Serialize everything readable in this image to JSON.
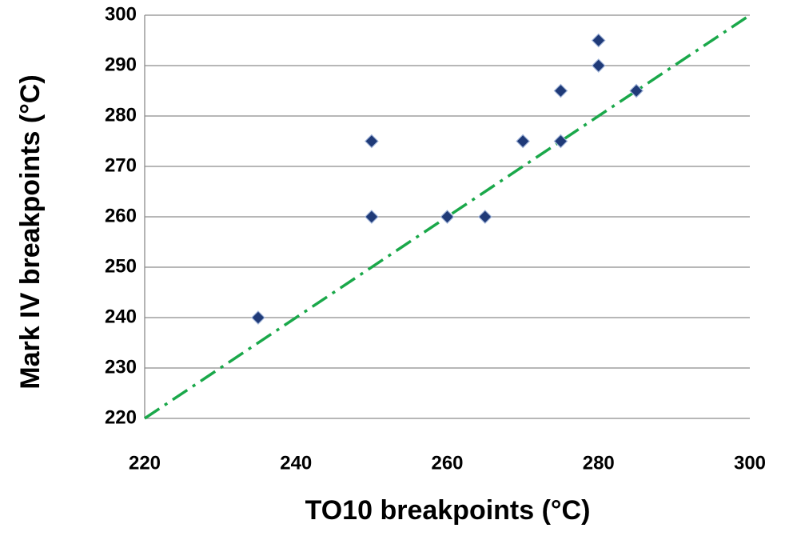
{
  "chart_data": {
    "type": "scatter",
    "xlabel": "TO10 breakpoints (°C)",
    "ylabel": "Mark IV breakpoints (°C)",
    "series": [
      {
        "color": "#1f3a78",
        "x": [
          235,
          250,
          250,
          260,
          265,
          270,
          275,
          275,
          280,
          280,
          285
        ],
        "values": [
          240,
          275,
          260,
          260,
          260,
          275,
          285,
          275,
          295,
          290,
          285
        ]
      }
    ],
    "xlim": [
      220,
      300
    ],
    "ylim": [
      220,
      300
    ],
    "xticks": [
      220,
      240,
      260,
      280,
      300
    ],
    "yticks": [
      220,
      230,
      240,
      250,
      260,
      270,
      280,
      290,
      300
    ],
    "grid": true,
    "identity_line": true,
    "identity_line_color": "#1aa84a"
  }
}
